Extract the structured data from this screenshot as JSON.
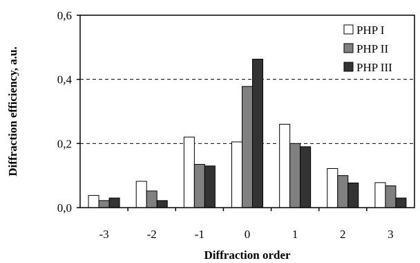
{
  "chart_data": {
    "type": "bar",
    "title": "",
    "xlabel": "Diffraction order",
    "ylabel": "Diffraction efficiency, a.u.",
    "categories": [
      "-3",
      "-2",
      "-1",
      "0",
      "1",
      "2",
      "3"
    ],
    "ylim": [
      0,
      0.6
    ],
    "yticks": [
      "0,0",
      "0,2",
      "0,4",
      "0,6"
    ],
    "grid": "dashed horizontal at 0,2 and 0,4",
    "legend_position": "top-right",
    "series": [
      {
        "name": "PHP I",
        "color": "#ffffff",
        "values": [
          0.038,
          0.082,
          0.22,
          0.205,
          0.26,
          0.122,
          0.078
        ]
      },
      {
        "name": "PHP II",
        "color": "#808080",
        "values": [
          0.022,
          0.052,
          0.135,
          0.378,
          0.2,
          0.1,
          0.068
        ]
      },
      {
        "name": "PHP III",
        "color": "#333333",
        "values": [
          0.03,
          0.022,
          0.13,
          0.463,
          0.19,
          0.077,
          0.03
        ]
      }
    ]
  }
}
